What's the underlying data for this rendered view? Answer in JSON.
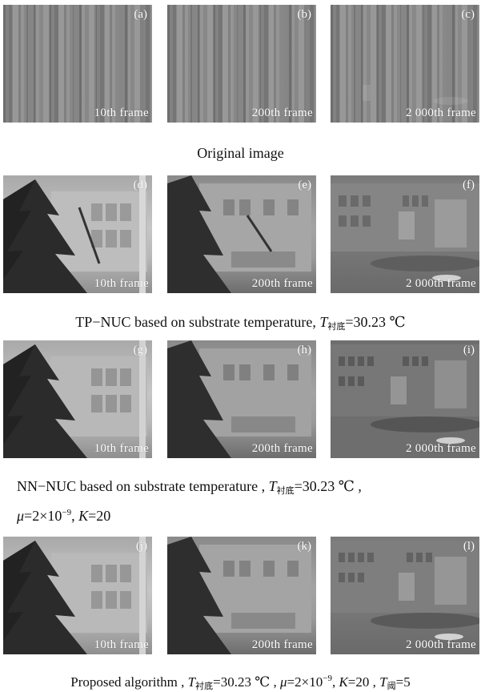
{
  "rows": [
    {
      "panels": [
        {
          "tag": "(a)",
          "frame": "10th  frame"
        },
        {
          "tag": "(b)",
          "frame": "200th  frame"
        },
        {
          "tag": "(c)",
          "frame": "2 000th frame"
        }
      ],
      "caption": "Original  image"
    },
    {
      "panels": [
        {
          "tag": "(d)",
          "frame": "10th  frame"
        },
        {
          "tag": "(e)",
          "frame": "200th  frame"
        },
        {
          "tag": "(f)",
          "frame": "2 000th frame"
        }
      ],
      "caption": {
        "text": "TP−NUC  based  on  substrate  temperature,",
        "var": "T",
        "sub": "衬底",
        "value": "=30.23  ℃"
      }
    },
    {
      "panels": [
        {
          "tag": "(g)",
          "frame": "10th  frame"
        },
        {
          "tag": "(h)",
          "frame": "200th  frame"
        },
        {
          "tag": "(i)",
          "frame": "2 000th frame"
        }
      ],
      "caption": {
        "text": "NN−NUC  based  on  substrate  temperature ,",
        "var": "T",
        "sub": "衬底",
        "value": "=30.23  ℃ ,",
        "line2_mu": "μ",
        "line2_a": "=2×10",
        "line2_exp": "−9",
        "line2_b": ", ",
        "line2_k": "K",
        "line2_c": "=20"
      }
    },
    {
      "panels": [
        {
          "tag": "(j)",
          "frame": "10th  frame"
        },
        {
          "tag": "(k)",
          "frame": "200th  frame"
        },
        {
          "tag": "(l)",
          "frame": "2 000th frame"
        }
      ],
      "caption": {
        "text": "Proposed  algorithm ,",
        "var": "T",
        "sub": "衬底",
        "value": "=30.23  ℃ , ",
        "mu": "μ",
        "mu_val": "=2×10",
        "exp": "−9",
        "k_sep": ", ",
        "k": "K",
        "k_val": "=20 , ",
        "t2": "T",
        "t2_sub": "阈",
        "t2_val": "=5"
      }
    }
  ]
}
